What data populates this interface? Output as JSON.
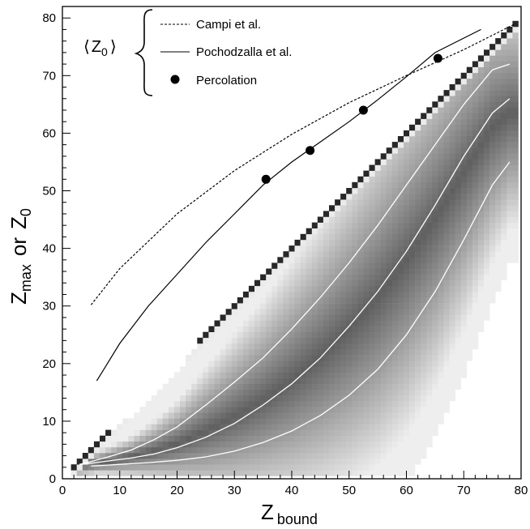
{
  "chart_data": {
    "type": "scatter",
    "xlabel": {
      "main": "Z",
      "sub": "bound"
    },
    "ylabel": {
      "main_a": "Z",
      "sub_a": "max",
      "mid": "or",
      "main_b": "Z",
      "sub_b": "0"
    },
    "xlim": [
      0,
      80
    ],
    "ylim": [
      0,
      82
    ],
    "x_ticks": [
      "0",
      "10",
      "20",
      "30",
      "40",
      "50",
      "60",
      "70",
      "80"
    ],
    "y_ticks": [
      "0",
      "10",
      "20",
      "30",
      "40",
      "50",
      "60",
      "70",
      "80"
    ],
    "grid": false,
    "legend_placement": "top-left",
    "legend": {
      "group_label_main": "Z",
      "group_label_sub": "0",
      "entries": [
        "Campi et al.",
        "Pochodzalla et al.",
        "Percolation"
      ]
    },
    "series": [
      {
        "name": "Campi et al.",
        "style": "dashed",
        "x": [
          5,
          10,
          20,
          30,
          40,
          50,
          60,
          70,
          79
        ],
        "y": [
          30.2,
          36.5,
          46.0,
          53.5,
          59.8,
          65.3,
          70.0,
          74.5,
          79.0
        ]
      },
      {
        "name": "Pochodzalla et al.",
        "style": "solid",
        "x": [
          6,
          10,
          15,
          20,
          25,
          30,
          35,
          40,
          45,
          50,
          55,
          60,
          65,
          73
        ],
        "y": [
          17,
          23.5,
          30.0,
          35.5,
          41.0,
          46.0,
          51.0,
          55.0,
          58.5,
          62.0,
          65.8,
          69.8,
          74.0,
          78.0
        ]
      },
      {
        "name": "Percolation",
        "style": "markers",
        "x": [
          35.5,
          43.2,
          52.5,
          65.5
        ],
        "y": [
          52.0,
          57.0,
          64.0,
          73.0
        ]
      }
    ],
    "density_contours": [
      {
        "x": [
          3,
          5,
          8,
          12,
          16,
          20,
          25,
          30,
          35,
          40,
          45,
          50,
          55,
          60,
          65,
          70,
          75,
          78
        ],
        "y": [
          2.5,
          3.0,
          3.8,
          5.0,
          6.8,
          9.0,
          12.8,
          16.8,
          21.0,
          26.0,
          31.5,
          37.5,
          44.0,
          51.0,
          58.0,
          65.0,
          71.0,
          72.0
        ]
      },
      {
        "x": [
          3,
          5,
          8,
          12,
          16,
          20,
          25,
          30,
          35,
          40,
          45,
          50,
          55,
          60,
          65,
          70,
          75,
          78
        ],
        "y": [
          2.5,
          2.7,
          3.1,
          3.6,
          4.3,
          5.4,
          7.2,
          9.6,
          12.8,
          16.5,
          21.0,
          26.5,
          32.5,
          39.5,
          47.5,
          56.0,
          63.5,
          66.0
        ]
      },
      {
        "x": [
          5,
          10,
          15,
          20,
          25,
          30,
          35,
          40,
          45,
          50,
          55,
          60,
          65,
          70,
          75,
          78
        ],
        "y": [
          2.2,
          2.5,
          2.8,
          3.2,
          3.8,
          4.8,
          6.3,
          8.3,
          11.0,
          14.5,
          19.0,
          25.0,
          32.5,
          41.5,
          51.0,
          55.0
        ]
      }
    ],
    "colors": {
      "axis": "#000000",
      "series_line": "#000000",
      "contour": "#ffffff",
      "density_dark": "#1a1a1a",
      "density_light": "#e8e8e8"
    }
  }
}
